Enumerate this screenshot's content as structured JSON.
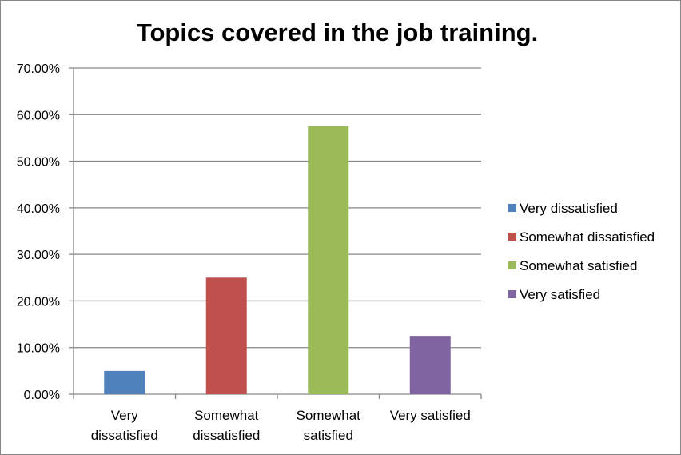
{
  "chart_data": {
    "type": "bar",
    "title": "Topics covered in the job training.",
    "categories": [
      [
        "Very",
        "dissatisfied"
      ],
      [
        "Somewhat",
        "dissatisfied"
      ],
      [
        "Somewhat",
        "satisfied"
      ],
      [
        "Very satisfied"
      ]
    ],
    "series": [
      {
        "name": "Very dissatisfied",
        "category_index": 0,
        "value": 0.05,
        "color": "#4F81BD"
      },
      {
        "name": "Somewhat dissatisfied",
        "category_index": 1,
        "value": 0.25,
        "color": "#C0504D"
      },
      {
        "name": "Somewhat satisfied",
        "category_index": 2,
        "value": 0.575,
        "color": "#9BBB59"
      },
      {
        "name": "Very satisfied",
        "category_index": 3,
        "value": 0.125,
        "color": "#8064A2"
      }
    ],
    "yticks": [
      "0.00%",
      "10.00%",
      "20.00%",
      "30.00%",
      "40.00%",
      "50.00%",
      "60.00%",
      "70.00%"
    ],
    "ylim": [
      0,
      0.7
    ],
    "grid": true,
    "legend_position": "right"
  }
}
